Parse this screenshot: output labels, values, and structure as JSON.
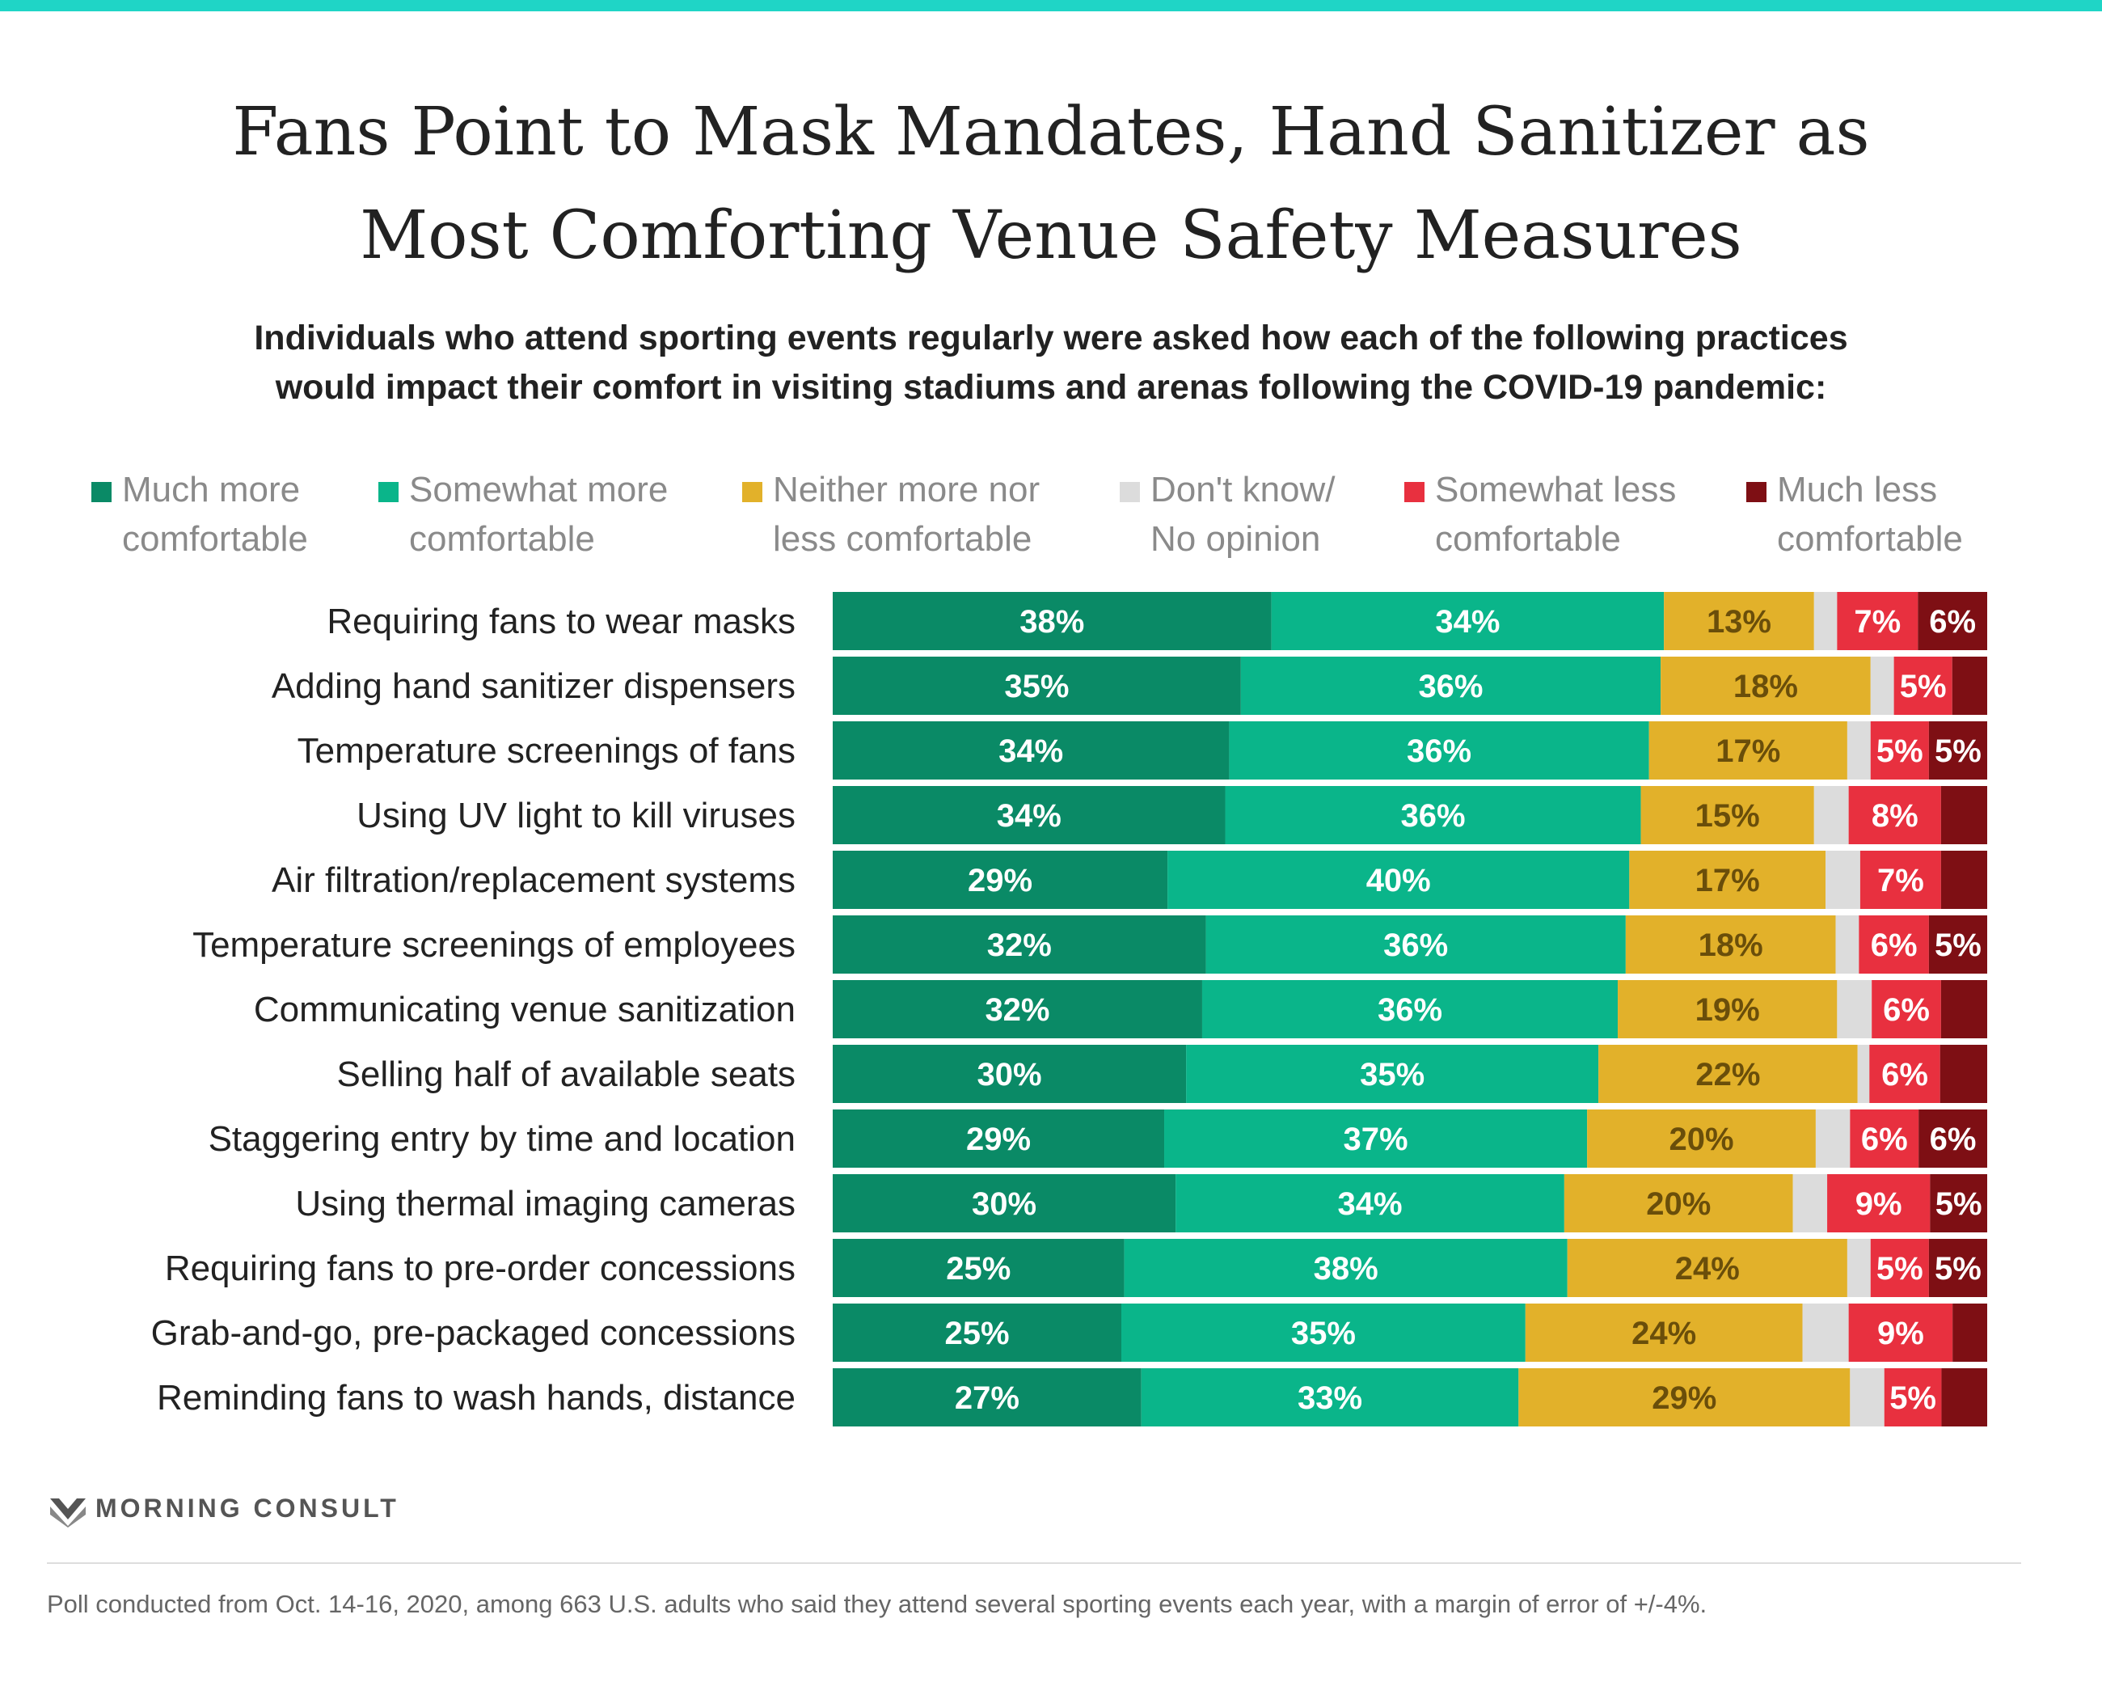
{
  "title_line1": "Fans Point to Mask Mandates, Hand Sanitizer as",
  "title_line2": "Most Comforting Venue Safety Measures",
  "subtitle_line1": "Individuals who attend sporting events regularly were asked how each of the following practices",
  "subtitle_line2": "would impact their comfort in visiting stadiums and arenas following the COVID-19 pandemic:",
  "legend": [
    {
      "line1": "Much more",
      "line2": "comfortable",
      "color": "#0a8a66"
    },
    {
      "line1": "Somewhat more",
      "line2": "comfortable",
      "color": "#0ab58a"
    },
    {
      "line1": "Neither more nor",
      "line2": "less comfortable",
      "color": "#e2b12a"
    },
    {
      "line1": "Don't know/",
      "line2": "No opinion",
      "color": "#dcdcdc"
    },
    {
      "line1": "Somewhat less",
      "line2": "comfortable",
      "color": "#e8303f"
    },
    {
      "line1": "Much less",
      "line2": "comfortable",
      "color": "#7e0f14"
    }
  ],
  "chart_data": {
    "type": "bar",
    "orientation": "horizontal",
    "stacked": "100%",
    "unit": "%",
    "categories": [
      "Requiring fans to wear masks",
      "Adding hand sanitizer dispensers",
      "Temperature screenings of fans",
      "Using UV light to kill viruses",
      "Air filtration/replacement systems",
      "Temperature screenings of employees",
      "Communicating venue sanitization",
      "Selling half of available seats",
      "Staggering entry by time and location",
      "Using thermal imaging cameras",
      "Requiring fans to pre-order concessions",
      "Grab-and-go, pre-packaged concessions",
      "Reminding fans to wash hands, distance"
    ],
    "series": [
      {
        "name": "Much more comfortable",
        "color": "#0a8a66",
        "label_color": "#ffffff",
        "values": [
          38,
          35,
          34,
          34,
          29,
          32,
          32,
          30,
          29,
          30,
          25,
          25,
          27
        ]
      },
      {
        "name": "Somewhat more comfortable",
        "color": "#0ab58a",
        "label_color": "#ffffff",
        "values": [
          34,
          36,
          36,
          36,
          40,
          36,
          36,
          35,
          37,
          34,
          38,
          35,
          33
        ]
      },
      {
        "name": "Neither more nor less comfortable",
        "color": "#e2b12a",
        "label_color": "#6a4e0a",
        "values": [
          13,
          18,
          17,
          15,
          17,
          18,
          19,
          22,
          20,
          20,
          24,
          24,
          29
        ]
      },
      {
        "name": "Don't know/No opinion",
        "color": "#dcdcdc",
        "label_color": "#666666",
        "values": [
          2,
          2,
          2,
          3,
          3,
          2,
          3,
          1,
          3,
          3,
          2,
          4,
          3
        ]
      },
      {
        "name": "Somewhat less comfortable",
        "color": "#e8303f",
        "label_color": "#ffffff",
        "values": [
          7,
          5,
          5,
          8,
          7,
          6,
          6,
          6,
          6,
          9,
          5,
          9,
          5
        ]
      },
      {
        "name": "Much less comfortable",
        "color": "#7e0f14",
        "label_color": "#ffffff",
        "values": [
          6,
          3,
          5,
          4,
          4,
          5,
          4,
          4,
          6,
          5,
          5,
          3,
          4
        ]
      }
    ],
    "labeled": [
      [
        true,
        true,
        true,
        false,
        true,
        true
      ],
      [
        true,
        true,
        true,
        false,
        true,
        false
      ],
      [
        true,
        true,
        true,
        false,
        true,
        true
      ],
      [
        true,
        true,
        true,
        false,
        true,
        false
      ],
      [
        true,
        true,
        true,
        false,
        true,
        false
      ],
      [
        true,
        true,
        true,
        false,
        true,
        true
      ],
      [
        true,
        true,
        true,
        false,
        true,
        false
      ],
      [
        true,
        true,
        true,
        false,
        true,
        false
      ],
      [
        true,
        true,
        true,
        false,
        true,
        true
      ],
      [
        true,
        true,
        true,
        false,
        true,
        true
      ],
      [
        true,
        true,
        true,
        false,
        true,
        true
      ],
      [
        true,
        true,
        true,
        false,
        true,
        false
      ],
      [
        true,
        true,
        true,
        false,
        true,
        false
      ]
    ],
    "xlim": [
      0,
      100
    ],
    "xlabel": "",
    "ylabel": "",
    "grid": false,
    "legend_position": "top"
  },
  "brand": "MORNING CONSULT",
  "footnote": "Poll conducted from Oct. 14-16, 2020, among 663 U.S. adults who said they attend several sporting events each year, with a margin of error of +/-4%."
}
